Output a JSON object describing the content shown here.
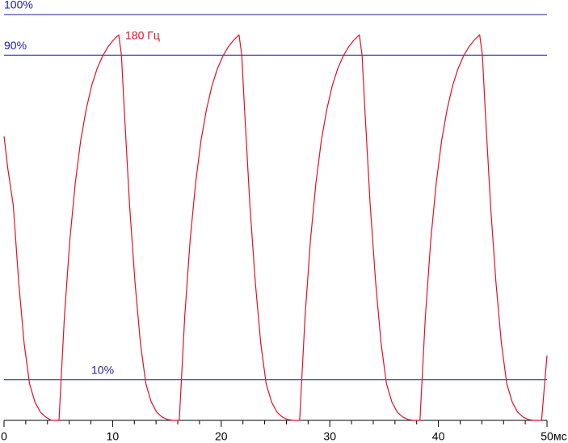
{
  "chart_data": {
    "type": "line",
    "annotation": "180 Гц",
    "x_unit": "мс",
    "xlim": [
      0,
      50
    ],
    "xticks": [
      0,
      10,
      20,
      30,
      40,
      50
    ],
    "xminorticks": [
      2,
      4,
      6,
      8,
      12,
      14,
      16,
      18,
      22,
      24,
      26,
      28,
      32,
      34,
      36,
      38,
      42,
      44,
      46,
      48
    ],
    "ylim": [
      0,
      100
    ],
    "yticks": [
      {
        "value": 100,
        "label": "100%"
      },
      {
        "value": 90,
        "label": "90%"
      },
      {
        "value": 10,
        "label": "10%"
      }
    ],
    "grid_color": "#1c1caa",
    "x": [
      0,
      0.35,
      0.85,
      1.35,
      1.85,
      2.35,
      2.85,
      3.35,
      3.85,
      4.35,
      5.06,
      5.56,
      6.06,
      6.56,
      7.06,
      7.56,
      8.06,
      8.56,
      9.06,
      9.56,
      10.06,
      10.56,
      10.81,
      11.06,
      11.56,
      12.06,
      12.56,
      13.06,
      13.56,
      14.06,
      14.56,
      15.06,
      15.56,
      16.14,
      16.64,
      17.14,
      17.64,
      18.14,
      18.64,
      19.14,
      19.64,
      20.14,
      20.64,
      21.14,
      21.64,
      21.89,
      22.14,
      22.64,
      23.14,
      23.64,
      24.14,
      24.64,
      25.14,
      25.64,
      26.14,
      26.64,
      27.22,
      27.72,
      28.22,
      28.72,
      29.22,
      29.72,
      30.22,
      30.72,
      31.22,
      31.72,
      32.22,
      32.72,
      32.97,
      33.22,
      33.72,
      34.22,
      34.72,
      35.22,
      35.72,
      36.22,
      36.72,
      37.22,
      37.72,
      38.3,
      38.8,
      39.3,
      39.8,
      40.3,
      40.8,
      41.3,
      41.8,
      42.3,
      42.8,
      43.3,
      43.8,
      44.05,
      44.3,
      44.8,
      45.3,
      45.8,
      46.3,
      46.8,
      47.3,
      47.8,
      48.3,
      48.8,
      49.5,
      50
    ],
    "series": [
      {
        "color": "#e0102a",
        "values": [
          70,
          62,
          53,
          34,
          19,
          9,
          4.5,
          2,
          0.8,
          0,
          0,
          25.6,
          44.5,
          58.5,
          69,
          76.6,
          82.4,
          86.6,
          89.7,
          92,
          93.7,
          95,
          90,
          77,
          53,
          34,
          19,
          9,
          4.5,
          2,
          0.8,
          0.2,
          0,
          0,
          25.6,
          44.5,
          58.5,
          69,
          76.6,
          82.4,
          86.6,
          89.7,
          92,
          93.7,
          95,
          90,
          77,
          53,
          34,
          19,
          9,
          4.5,
          2,
          0.8,
          0.2,
          0,
          0,
          25.6,
          44.5,
          58.5,
          69,
          76.6,
          82.4,
          86.6,
          89.7,
          92,
          93.7,
          95,
          90,
          77,
          53,
          34,
          19,
          9,
          4.5,
          2,
          0.8,
          0.2,
          0,
          0,
          25.6,
          44.5,
          58.5,
          69,
          76.6,
          82.4,
          86.6,
          89.7,
          92,
          93.7,
          95,
          90,
          77,
          53,
          34,
          19,
          9,
          4.5,
          2,
          0.8,
          0.2,
          0,
          0,
          16
        ]
      }
    ]
  }
}
